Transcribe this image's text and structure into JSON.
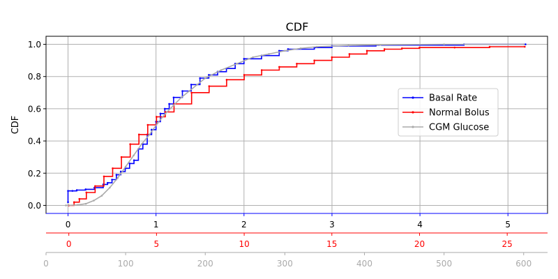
{
  "chart_data": {
    "type": "line",
    "title": "CDF",
    "ylabel": "CDF",
    "ylim": [
      -0.05,
      1.05
    ],
    "yticks": [
      0.0,
      0.2,
      0.4,
      0.6,
      0.8,
      1.0
    ],
    "ytick_labels": [
      "0.0",
      "0.2",
      "0.4",
      "0.6",
      "0.8",
      "1.0"
    ],
    "grid": true,
    "legend_position": "center-right",
    "x_axes": [
      {
        "id": "basal",
        "color": "#0000ff",
        "xlim": [
          -0.25,
          5.45
        ],
        "ticks": [
          0,
          1,
          2,
          3,
          4,
          5
        ],
        "tick_labels": [
          "0",
          "1",
          "2",
          "3",
          "4",
          "5"
        ]
      },
      {
        "id": "bolus",
        "color": "#ff0000",
        "xlim": [
          -1.3,
          27.3
        ],
        "ticks": [
          0,
          5,
          10,
          15,
          20,
          25
        ],
        "tick_labels": [
          "0",
          "5",
          "10",
          "15",
          "20",
          "25"
        ]
      },
      {
        "id": "cgm",
        "color": "#aaaaaa",
        "xlim": [
          0,
          630
        ],
        "ticks": [
          0,
          100,
          200,
          300,
          400,
          500,
          600
        ],
        "tick_labels": [
          "0",
          "100",
          "200",
          "300",
          "400",
          "500",
          "600"
        ]
      }
    ],
    "series": [
      {
        "name": "Basal Rate",
        "color": "#0000ff",
        "axis": "basal",
        "step": true,
        "points": [
          [
            0,
            0.02
          ],
          [
            0,
            0.09
          ],
          [
            0.05,
            0.09
          ],
          [
            0.1,
            0.095
          ],
          [
            0.2,
            0.1
          ],
          [
            0.3,
            0.11
          ],
          [
            0.4,
            0.13
          ],
          [
            0.45,
            0.14
          ],
          [
            0.5,
            0.16
          ],
          [
            0.55,
            0.19
          ],
          [
            0.6,
            0.21
          ],
          [
            0.65,
            0.23
          ],
          [
            0.7,
            0.26
          ],
          [
            0.75,
            0.28
          ],
          [
            0.8,
            0.35
          ],
          [
            0.85,
            0.38
          ],
          [
            0.9,
            0.44
          ],
          [
            0.95,
            0.47
          ],
          [
            1.0,
            0.52
          ],
          [
            1.05,
            0.57
          ],
          [
            1.1,
            0.6
          ],
          [
            1.15,
            0.63
          ],
          [
            1.2,
            0.67
          ],
          [
            1.3,
            0.71
          ],
          [
            1.4,
            0.75
          ],
          [
            1.5,
            0.79
          ],
          [
            1.6,
            0.81
          ],
          [
            1.7,
            0.83
          ],
          [
            1.8,
            0.85
          ],
          [
            1.9,
            0.88
          ],
          [
            2.0,
            0.91
          ],
          [
            2.2,
            0.93
          ],
          [
            2.4,
            0.96
          ],
          [
            2.5,
            0.97
          ],
          [
            2.8,
            0.98
          ],
          [
            3.0,
            0.99
          ],
          [
            3.5,
            0.995
          ],
          [
            4.5,
            1.0
          ],
          [
            5.2,
            1.0
          ]
        ]
      },
      {
        "name": "Normal Bolus",
        "color": "#ff0000",
        "axis": "bolus",
        "step": true,
        "points": [
          [
            0,
            0.0
          ],
          [
            0.3,
            0.02
          ],
          [
            0.6,
            0.04
          ],
          [
            1.0,
            0.08
          ],
          [
            1.5,
            0.12
          ],
          [
            2.0,
            0.18
          ],
          [
            2.5,
            0.23
          ],
          [
            3.0,
            0.3
          ],
          [
            3.5,
            0.38
          ],
          [
            4.0,
            0.44
          ],
          [
            4.5,
            0.5
          ],
          [
            5.0,
            0.55
          ],
          [
            5.5,
            0.58
          ],
          [
            6.0,
            0.63
          ],
          [
            7.0,
            0.7
          ],
          [
            8.0,
            0.74
          ],
          [
            9.0,
            0.78
          ],
          [
            10.0,
            0.81
          ],
          [
            11.0,
            0.84
          ],
          [
            12.0,
            0.86
          ],
          [
            13.0,
            0.88
          ],
          [
            14.0,
            0.9
          ],
          [
            15.0,
            0.92
          ],
          [
            16.0,
            0.94
          ],
          [
            17.0,
            0.96
          ],
          [
            18.0,
            0.97
          ],
          [
            19.0,
            0.975
          ],
          [
            20.0,
            0.98
          ],
          [
            22.0,
            0.98
          ],
          [
            24.0,
            0.985
          ],
          [
            26.0,
            0.985
          ]
        ]
      },
      {
        "name": "CGM Glucose",
        "color": "#aaaaaa",
        "axis": "cgm",
        "step": false,
        "points": [
          [
            25,
            0.0
          ],
          [
            40,
            0.003
          ],
          [
            50,
            0.01
          ],
          [
            60,
            0.03
          ],
          [
            70,
            0.06
          ],
          [
            80,
            0.11
          ],
          [
            90,
            0.17
          ],
          [
            100,
            0.24
          ],
          [
            110,
            0.31
          ],
          [
            120,
            0.38
          ],
          [
            130,
            0.44
          ],
          [
            140,
            0.51
          ],
          [
            150,
            0.57
          ],
          [
            160,
            0.62
          ],
          [
            170,
            0.67
          ],
          [
            180,
            0.71
          ],
          [
            190,
            0.75
          ],
          [
            200,
            0.79
          ],
          [
            220,
            0.84
          ],
          [
            240,
            0.88
          ],
          [
            260,
            0.92
          ],
          [
            280,
            0.94
          ],
          [
            300,
            0.96
          ],
          [
            320,
            0.975
          ],
          [
            340,
            0.985
          ],
          [
            380,
            0.993
          ],
          [
            420,
            0.997
          ],
          [
            500,
            1.0
          ],
          [
            600,
            1.0
          ]
        ]
      }
    ]
  }
}
